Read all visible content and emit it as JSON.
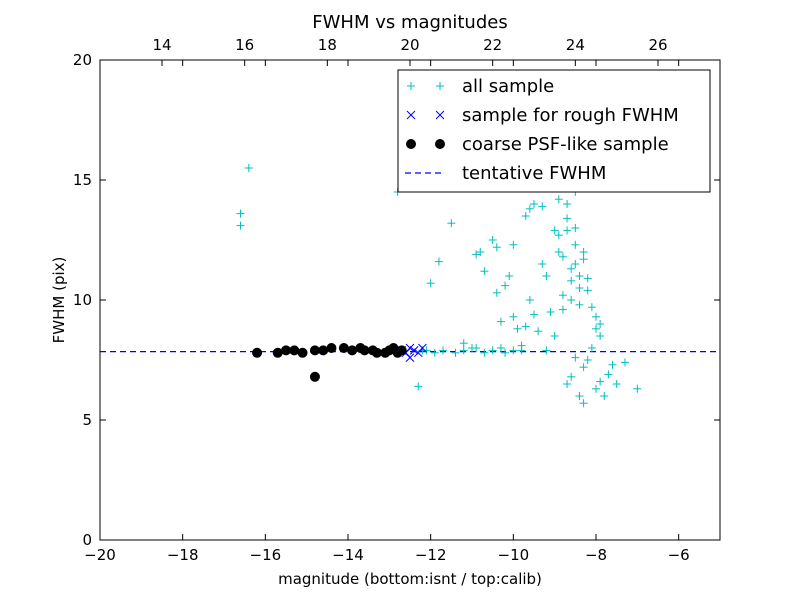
{
  "chart_data": {
    "type": "scatter",
    "title": "FWHM vs magnitudes",
    "xlabel": "magnitude (bottom:isnt / top:calib)",
    "ylabel": "FWHM (pix)",
    "xlim": [
      -20,
      -5
    ],
    "ylim": [
      0,
      20
    ],
    "top_xlim": [
      12.5,
      27.5
    ],
    "x_ticks": [
      "−20",
      "−18",
      "−16",
      "−14",
      "−12",
      "−10",
      "−8",
      "−6"
    ],
    "x_tick_values": [
      -20,
      -18,
      -16,
      -14,
      -12,
      -10,
      -8,
      -6
    ],
    "y_ticks": [
      "0",
      "5",
      "10",
      "15",
      "20"
    ],
    "y_tick_values": [
      0,
      5,
      10,
      15,
      20
    ],
    "top_x_ticks": [
      "14",
      "16",
      "18",
      "20",
      "22",
      "24",
      "26"
    ],
    "top_x_tick_values": [
      14,
      16,
      18,
      20,
      22,
      24,
      26
    ],
    "grid": false,
    "legend_position": "upper-right",
    "colors": {
      "all": "#00bfbf",
      "rough": "#0000ff",
      "coarse": "#000000",
      "tentative": "#0000ff"
    },
    "series": [
      {
        "name": "all sample",
        "marker": "plus",
        "points": [
          [
            -16.6,
            13.1
          ],
          [
            -16.6,
            13.6
          ],
          [
            -16.4,
            15.5
          ],
          [
            -12.8,
            14.5
          ],
          [
            -12.3,
            6.4
          ],
          [
            -12.0,
            10.7
          ],
          [
            -11.8,
            11.6
          ],
          [
            -11.5,
            13.2
          ],
          [
            -11.2,
            8.2
          ],
          [
            -11.0,
            8.0
          ],
          [
            -10.9,
            11.9
          ],
          [
            -10.8,
            12.0
          ],
          [
            -10.7,
            11.2
          ],
          [
            -10.5,
            12.5
          ],
          [
            -10.4,
            12.2
          ],
          [
            -10.4,
            10.3
          ],
          [
            -10.3,
            9.1
          ],
          [
            -10.3,
            8.0
          ],
          [
            -10.2,
            10.6
          ],
          [
            -10.1,
            11.0
          ],
          [
            -10.0,
            9.3
          ],
          [
            -10.0,
            12.3
          ],
          [
            -9.9,
            8.8
          ],
          [
            -9.8,
            8.1
          ],
          [
            -9.7,
            13.5
          ],
          [
            -9.6,
            13.8
          ],
          [
            -9.5,
            14.0
          ],
          [
            -9.3,
            13.9
          ],
          [
            -9.3,
            11.5
          ],
          [
            -9.2,
            11.0
          ],
          [
            -9.1,
            9.5
          ],
          [
            -9.0,
            12.9
          ],
          [
            -8.9,
            14.2
          ],
          [
            -8.9,
            12.7
          ],
          [
            -8.9,
            12.0
          ],
          [
            -8.8,
            11.8
          ],
          [
            -8.8,
            10.2
          ],
          [
            -8.8,
            9.6
          ],
          [
            -8.7,
            14.0
          ],
          [
            -8.7,
            13.4
          ],
          [
            -8.7,
            12.9
          ],
          [
            -8.6,
            11.3
          ],
          [
            -8.6,
            10.8
          ],
          [
            -8.6,
            10.0
          ],
          [
            -8.5,
            14.5
          ],
          [
            -8.5,
            13.0
          ],
          [
            -8.5,
            12.3
          ],
          [
            -8.5,
            11.5
          ],
          [
            -8.4,
            11.0
          ],
          [
            -8.4,
            10.5
          ],
          [
            -8.4,
            9.8
          ],
          [
            -8.3,
            12.0
          ],
          [
            -8.3,
            11.7
          ],
          [
            -8.2,
            10.9
          ],
          [
            -8.2,
            10.4
          ],
          [
            -8.1,
            9.7
          ],
          [
            -8.0,
            9.3
          ],
          [
            -8.0,
            8.8
          ],
          [
            -7.9,
            8.5
          ],
          [
            -7.9,
            9.0
          ],
          [
            -8.1,
            8.0
          ],
          [
            -8.2,
            7.5
          ],
          [
            -8.3,
            7.2
          ],
          [
            -8.5,
            7.6
          ],
          [
            -8.6,
            6.8
          ],
          [
            -8.7,
            6.5
          ],
          [
            -8.4,
            6.0
          ],
          [
            -8.3,
            5.7
          ],
          [
            -8.0,
            6.3
          ],
          [
            -7.9,
            6.6
          ],
          [
            -7.8,
            6.0
          ],
          [
            -7.7,
            6.9
          ],
          [
            -7.6,
            7.3
          ],
          [
            -7.5,
            6.5
          ],
          [
            -7.3,
            7.4
          ],
          [
            -7.0,
            6.3
          ],
          [
            -9.0,
            8.5
          ],
          [
            -9.2,
            7.9
          ],
          [
            -9.4,
            8.7
          ],
          [
            -9.5,
            9.4
          ],
          [
            -9.6,
            10.0
          ],
          [
            -9.7,
            8.9
          ],
          [
            -9.8,
            7.9
          ],
          [
            -10.0,
            7.9
          ],
          [
            -10.2,
            7.8
          ],
          [
            -10.5,
            7.9
          ],
          [
            -10.7,
            7.8
          ],
          [
            -10.9,
            8.0
          ],
          [
            -11.2,
            7.9
          ],
          [
            -11.4,
            7.8
          ],
          [
            -11.7,
            7.9
          ],
          [
            -11.9,
            7.8
          ],
          [
            -12.1,
            7.9
          ],
          [
            -12.2,
            7.9
          ]
        ]
      },
      {
        "name": "sample for rough FWHM",
        "marker": "x",
        "points": [
          [
            -12.7,
            7.9
          ],
          [
            -12.6,
            7.8
          ],
          [
            -12.5,
            8.0
          ],
          [
            -12.4,
            7.9
          ],
          [
            -12.5,
            7.6
          ],
          [
            -12.3,
            7.8
          ],
          [
            -12.2,
            8.0
          ]
        ]
      },
      {
        "name": "coarse PSF-like sample",
        "marker": "dot",
        "points": [
          [
            -16.2,
            7.8
          ],
          [
            -15.7,
            7.8
          ],
          [
            -15.5,
            7.9
          ],
          [
            -15.3,
            7.9
          ],
          [
            -15.1,
            7.8
          ],
          [
            -14.8,
            7.9
          ],
          [
            -14.8,
            6.8
          ],
          [
            -14.6,
            7.9
          ],
          [
            -14.4,
            8.0
          ],
          [
            -14.1,
            8.0
          ],
          [
            -13.9,
            7.9
          ],
          [
            -13.7,
            8.0
          ],
          [
            -13.6,
            7.9
          ],
          [
            -13.4,
            7.9
          ],
          [
            -13.3,
            7.8
          ],
          [
            -13.1,
            7.8
          ],
          [
            -13.0,
            7.9
          ],
          [
            -12.9,
            8.0
          ],
          [
            -12.8,
            7.8
          ],
          [
            -12.7,
            7.9
          ]
        ]
      },
      {
        "name": "tentative FWHM",
        "marker": "dashed-line",
        "y": 7.85
      }
    ]
  }
}
